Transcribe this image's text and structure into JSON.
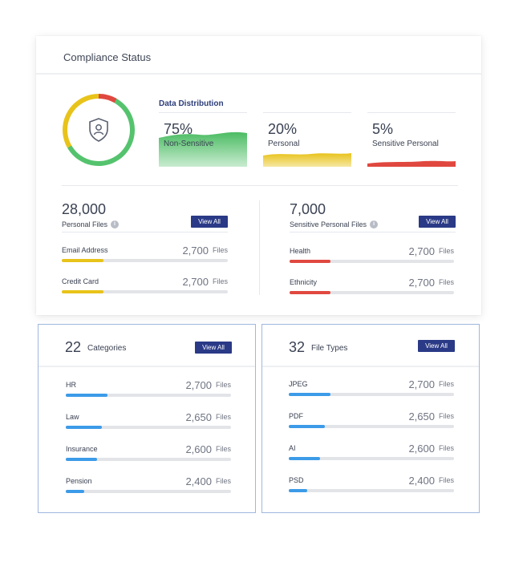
{
  "header": {
    "title": "Compliance Status"
  },
  "data_distribution": {
    "title": "Data Distribution",
    "items": [
      {
        "percent": "75%",
        "label": "Non-Sensitive",
        "color": "#4cbc63"
      },
      {
        "percent": "20%",
        "label": "Personal",
        "color": "#e8c31a"
      },
      {
        "percent": "5%",
        "label": "Sensitive Personal",
        "color": "#e0483f"
      }
    ]
  },
  "personal_files": {
    "count": "28,000",
    "label": "Personal Files",
    "button": "View All",
    "rows": [
      {
        "name": "Email Address",
        "value": "2,700",
        "unit": "Files",
        "fill": 0.25,
        "color": "#e8c31a"
      },
      {
        "name": "Credit Card",
        "value": "2,700",
        "unit": "Files",
        "fill": 0.25,
        "color": "#e8c31a"
      }
    ]
  },
  "sensitive_files": {
    "count": "7,000",
    "label": "Sensitive Personal Files",
    "button": "View All",
    "rows": [
      {
        "name": "Health",
        "value": "2,700",
        "unit": "Files",
        "fill": 0.25,
        "color": "#e0483f"
      },
      {
        "name": "Ethnicity",
        "value": "2,700",
        "unit": "Files",
        "fill": 0.25,
        "color": "#e0483f"
      }
    ]
  },
  "categories": {
    "count": "22",
    "title": "Categories",
    "button": "View All",
    "rows": [
      {
        "name": "HR",
        "value": "2,700",
        "unit": "Files",
        "fill": 0.25,
        "color": "#3c9be8"
      },
      {
        "name": "Law",
        "value": "2,650",
        "unit": "Files",
        "fill": 0.22,
        "color": "#3c9be8"
      },
      {
        "name": "Insurance",
        "value": "2,600",
        "unit": "Files",
        "fill": 0.19,
        "color": "#3c9be8"
      },
      {
        "name": "Pension",
        "value": "2,400",
        "unit": "Files",
        "fill": 0.11,
        "color": "#3c9be8"
      }
    ]
  },
  "file_types": {
    "count": "32",
    "title": "File Types",
    "button": "View All",
    "rows": [
      {
        "name": "JPEG",
        "value": "2,700",
        "unit": "Files",
        "fill": 0.25,
        "color": "#3c9be8"
      },
      {
        "name": "PDF",
        "value": "2,650",
        "unit": "Files",
        "fill": 0.22,
        "color": "#3c9be8"
      },
      {
        "name": "AI",
        "value": "2,600",
        "unit": "Files",
        "fill": 0.19,
        "color": "#3c9be8"
      },
      {
        "name": "PSD",
        "value": "2,400",
        "unit": "Files",
        "fill": 0.11,
        "color": "#3c9be8"
      }
    ]
  },
  "icons": {
    "shield": "shield-user-icon",
    "info": "info-icon"
  }
}
